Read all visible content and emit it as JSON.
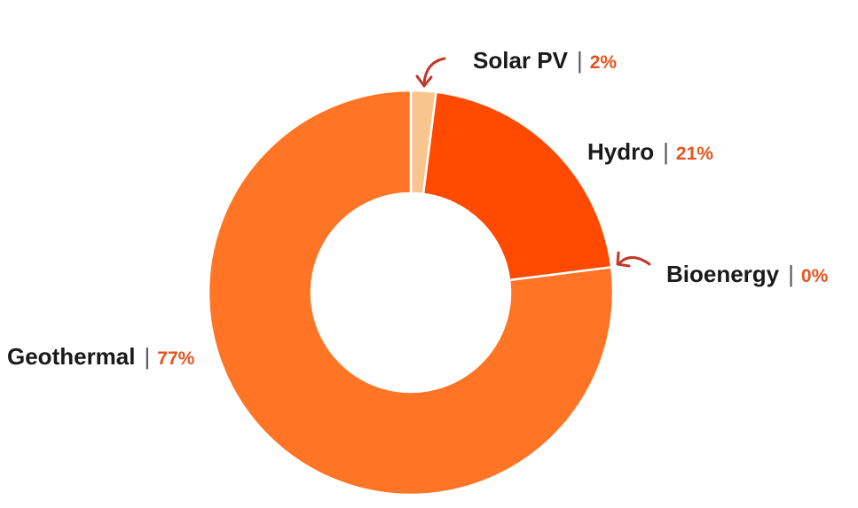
{
  "chart_data": {
    "type": "pie",
    "donut": true,
    "categories": [
      "Solar PV",
      "Hydro",
      "Bioenergy",
      "Geothermal"
    ],
    "values": [
      2,
      21,
      0,
      77
    ],
    "value_labels": [
      "2%",
      "21%",
      "0%",
      "77%"
    ],
    "separator": "|",
    "start_angle_deg": 0,
    "direction": "clockwise",
    "colors": {
      "Solar PV": "#F8C58E",
      "Hydro": "#FF4A00",
      "Bioenergy": "#FF7A25",
      "Geothermal": "#FF7525"
    },
    "value_label_color": "#E8531F",
    "callout_arrow_color": "#C0392B",
    "callout_arrows_for": [
      "Solar PV",
      "Bioenergy"
    ],
    "title": "",
    "legend": "none"
  }
}
